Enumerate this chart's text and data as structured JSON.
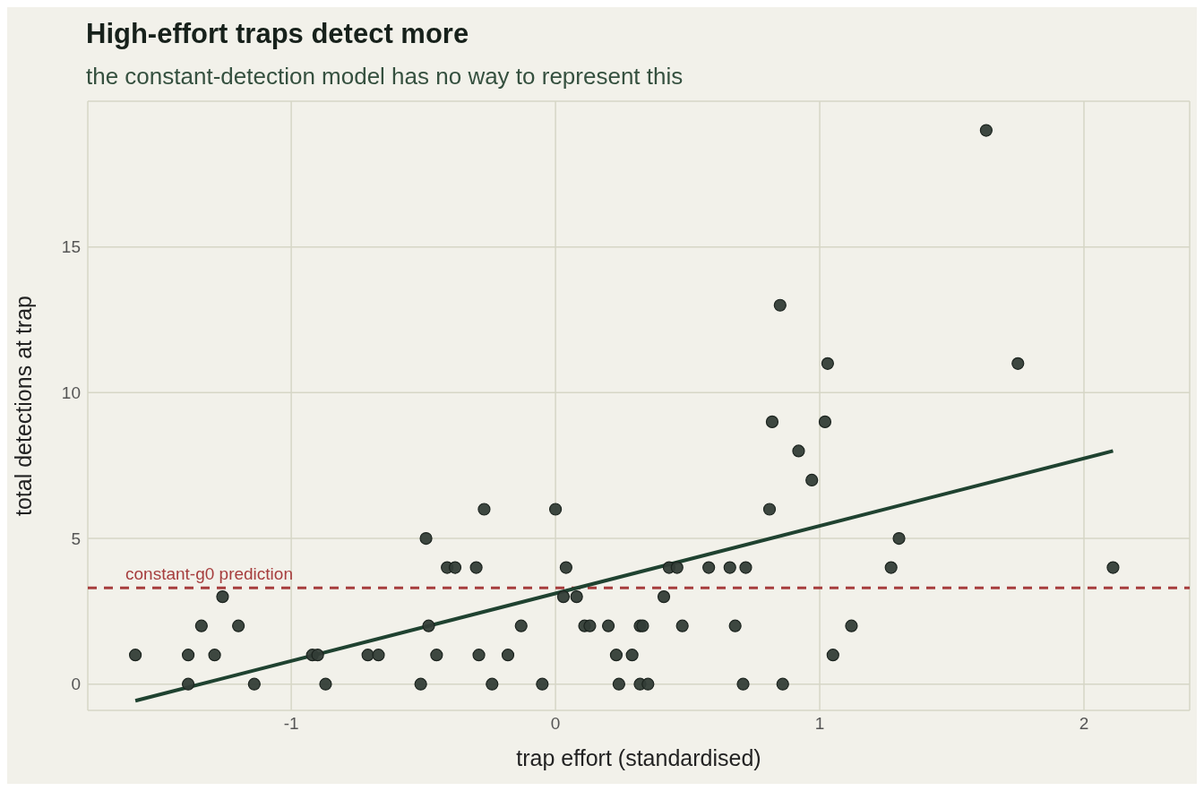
{
  "chart_data": {
    "type": "scatter",
    "title": "High-effort traps detect more",
    "subtitle": "the constant-detection model has no way to represent this",
    "xlabel": "trap effort (standardised)",
    "ylabel": "total detections at trap",
    "xlim": [
      -1.77,
      2.4
    ],
    "ylim": [
      -0.9,
      20
    ],
    "xticks": [
      -1,
      0,
      1,
      2
    ],
    "yticks": [
      0,
      5,
      10,
      15
    ],
    "grid": true,
    "series": [
      {
        "color": "#333d37",
        "marker": "circle",
        "x": [
          -1.59,
          -1.39,
          -1.39,
          -1.34,
          -1.29,
          -1.26,
          -1.2,
          -1.14,
          -0.92,
          -0.9,
          -0.87,
          -0.71,
          -0.67,
          -0.51,
          -0.49,
          -0.48,
          -0.45,
          -0.41,
          -0.38,
          -0.3,
          -0.29,
          -0.27,
          -0.24,
          -0.18,
          -0.13,
          -0.05,
          0.0,
          0.03,
          0.04,
          0.08,
          0.11,
          0.13,
          0.2,
          0.23,
          0.24,
          0.29,
          0.32,
          0.33,
          0.32,
          0.35,
          0.41,
          0.43,
          0.46,
          0.48,
          0.58,
          0.66,
          0.68,
          0.71,
          0.72,
          0.81,
          0.82,
          0.85,
          0.86,
          0.92,
          0.97,
          1.02,
          1.03,
          1.05,
          1.12,
          1.27,
          1.3,
          1.63,
          1.75,
          2.11
        ],
        "values": [
          1,
          1,
          0,
          2,
          1,
          3,
          2,
          0,
          1,
          1,
          0,
          1,
          1,
          0,
          5,
          2,
          1,
          4,
          4,
          4,
          1,
          6,
          0,
          1,
          2,
          0,
          6,
          3,
          4,
          3,
          2,
          2,
          2,
          1,
          0,
          1,
          2,
          2,
          0,
          0,
          3,
          4,
          4,
          2,
          4,
          4,
          2,
          0,
          4,
          6,
          9,
          13,
          0,
          8,
          7,
          9,
          11,
          1,
          2,
          4,
          5,
          19,
          11,
          4
        ]
      },
      {
        "type": "line",
        "color": "#1f4230",
        "marker": "none",
        "x": [
          -1.59,
          2.11
        ],
        "values": [
          -0.57,
          8.0
        ]
      }
    ],
    "ref_lines": [
      {
        "axis": "y",
        "value": 3.3,
        "label": "constant-g0 prediction",
        "color": "#a63d3d",
        "line_style": "dashed"
      }
    ]
  }
}
